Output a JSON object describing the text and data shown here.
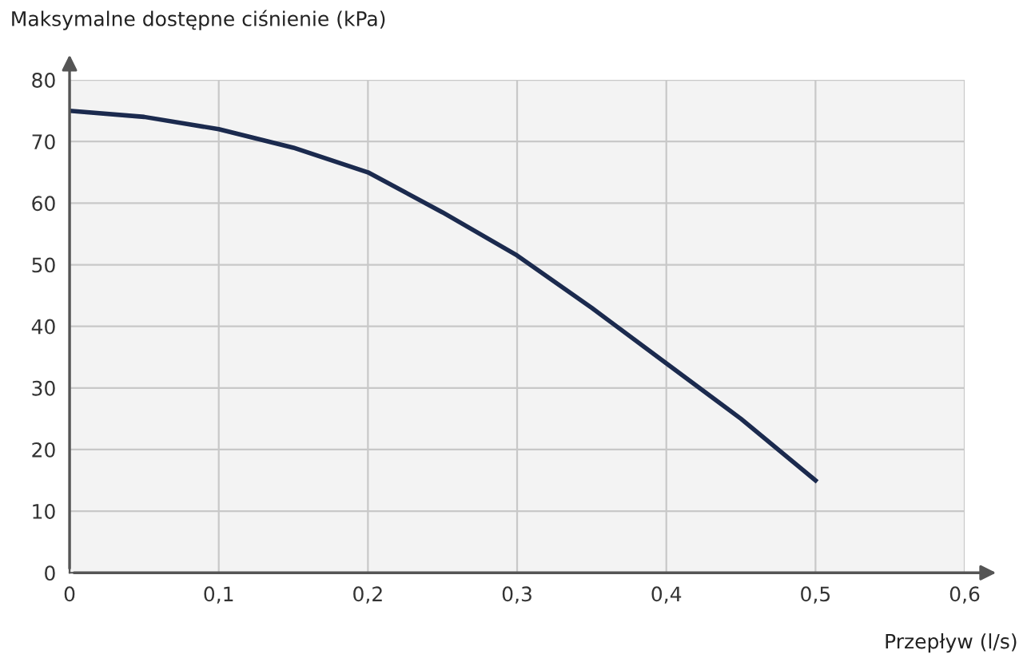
{
  "chart_data": {
    "type": "line",
    "xlabel": "Przepływ (l/s)",
    "ylabel": "Maksymalne dostępne ciśnienie (kPa)",
    "x": [
      0,
      0.05,
      0.1,
      0.15,
      0.2,
      0.25,
      0.3,
      0.35,
      0.4,
      0.45,
      0.5
    ],
    "series": [
      {
        "color": "#1b2a4e",
        "values": [
          75,
          74,
          72,
          69,
          65,
          58.5,
          51.5,
          43,
          34,
          25,
          15
        ]
      }
    ],
    "xlim": [
      0,
      0.6
    ],
    "ylim": [
      0,
      80
    ],
    "xticks": [
      0,
      {
        "value": 0.1,
        "label": "0,1"
      },
      {
        "value": 0.2,
        "label": "0,2"
      },
      {
        "value": 0.3,
        "label": "0,3"
      },
      {
        "value": 0.4,
        "label": "0,4"
      },
      {
        "value": 0.5,
        "label": "0,5"
      },
      {
        "value": 0.6,
        "label": "0,6"
      }
    ],
    "yticks": [
      0,
      10,
      20,
      30,
      40,
      50,
      60,
      70,
      80
    ],
    "grid": true,
    "marker": "none",
    "line_style": "solid"
  }
}
